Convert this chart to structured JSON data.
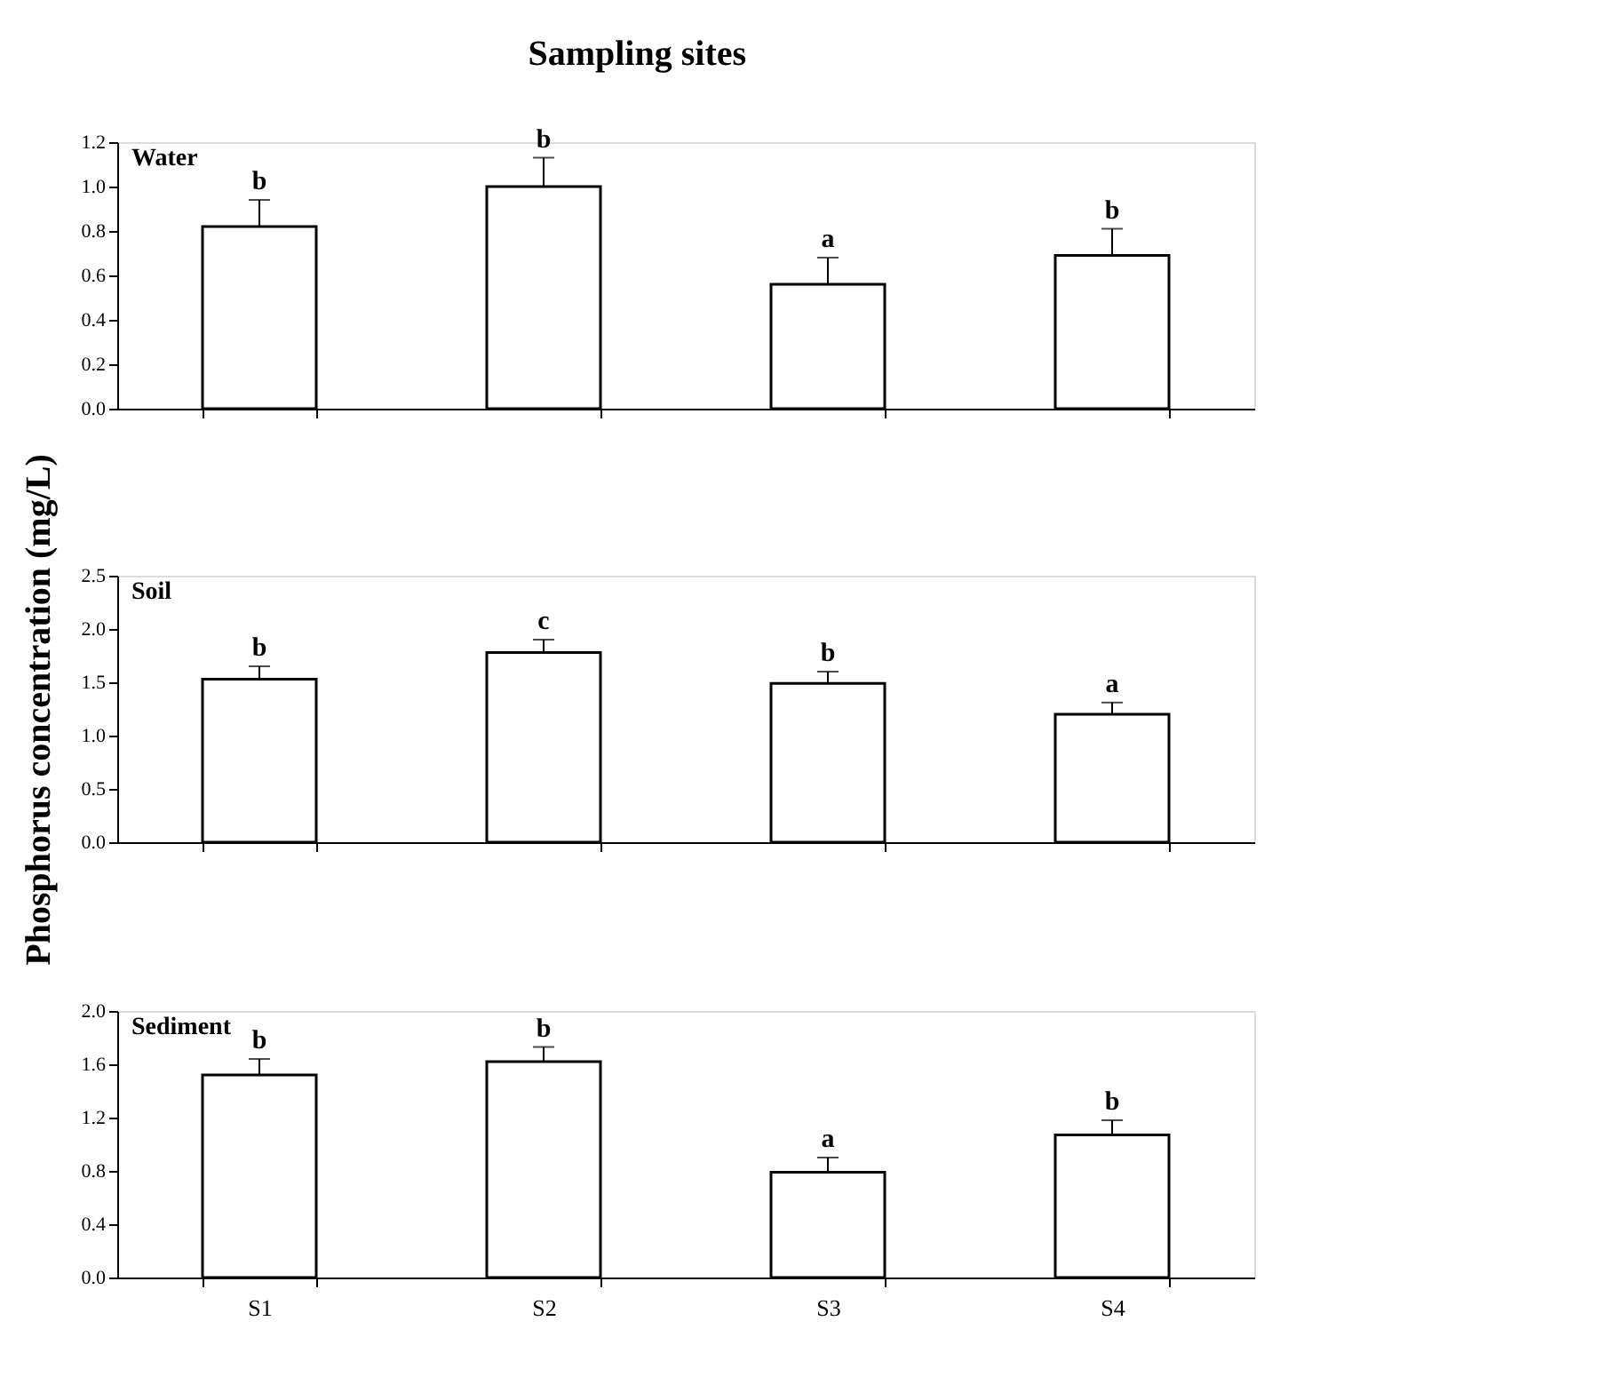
{
  "chart_data": [
    {
      "type": "bar",
      "title": "Sampling sites",
      "categories": [
        "S1",
        "S2",
        "S3",
        "S4"
      ],
      "series": [
        {
          "color": "#ffffff",
          "values": [
            0.82,
            1.0,
            0.56,
            0.69
          ],
          "errors": [
            [
              0.82,
              0.94
            ],
            [
              1.0,
              1.13
            ],
            [
              0.56,
              0.68
            ],
            [
              0.69,
              0.81
            ]
          ]
        }
      ],
      "ylim": [
        0,
        1.2
      ],
      "yticks": [
        {
          "value": 0,
          "label": "0.0"
        },
        {
          "value": 0.2,
          "label": "0.2"
        },
        {
          "value": 0.4,
          "label": "0.4"
        },
        {
          "value": 0.6,
          "label": "0.6"
        },
        {
          "value": 0.8,
          "label": "0.8"
        },
        {
          "value": 1.0,
          "label": "1.0"
        },
        {
          "value": 1.2,
          "label": "1.2"
        }
      ],
      "annotations": [
        "Water",
        {
          "text": "b",
          "x": "S1",
          "y": 0.94
        },
        {
          "text": "b",
          "x": "S2",
          "y": 1.13
        },
        {
          "text": "a",
          "x": "S3",
          "y": 0.68
        },
        {
          "text": "b",
          "x": "S4",
          "y": 0.81
        }
      ],
      "tick_labels": "y",
      "grid": false
    },
    {
      "type": "bar",
      "ylabel": "Phosphorus concentration (mg/L)",
      "categories": [
        "S1",
        "S2",
        "S3",
        "S4"
      ],
      "series": [
        {
          "color": "#ffffff",
          "values": [
            1.53,
            1.78,
            1.49,
            1.2
          ],
          "errors": [
            [
              1.53,
              1.65
            ],
            [
              1.78,
              1.9
            ],
            [
              1.49,
              1.6
            ],
            [
              1.2,
              1.31
            ]
          ]
        }
      ],
      "ylim": [
        0,
        2.5
      ],
      "yticks": [
        {
          "value": 0,
          "label": "0.0"
        },
        {
          "value": 0.5,
          "label": "0.5"
        },
        {
          "value": 1.0,
          "label": "1.0"
        },
        {
          "value": 1.5,
          "label": "1.5"
        },
        {
          "value": 2.0,
          "label": "2.0"
        },
        {
          "value": 2.5,
          "label": "2.5"
        }
      ],
      "annotations": [
        "Soil",
        {
          "text": "b",
          "x": "S1",
          "y": 1.65
        },
        {
          "text": "c",
          "x": "S2",
          "y": 1.9
        },
        {
          "text": "b",
          "x": "S3",
          "y": 1.6
        },
        {
          "text": "a",
          "x": "S4",
          "y": 1.31
        }
      ],
      "tick_labels": "y",
      "grid": false
    },
    {
      "type": "bar",
      "categories": [
        "S1",
        "S2",
        "S3",
        "S4"
      ],
      "series": [
        {
          "color": "#ffffff",
          "values": [
            1.52,
            1.62,
            0.79,
            1.07
          ],
          "errors": [
            [
              1.52,
              1.64
            ],
            [
              1.62,
              1.73
            ],
            [
              0.79,
              0.9
            ],
            [
              1.07,
              1.18
            ]
          ]
        }
      ],
      "ylim": [
        0,
        2.0
      ],
      "yticks": [
        {
          "value": 0,
          "label": "0.0"
        },
        {
          "value": 0.4,
          "label": "0.4"
        },
        {
          "value": 0.8,
          "label": "0.8"
        },
        {
          "value": 1.2,
          "label": "1.2"
        },
        {
          "value": 1.6,
          "label": "1.6"
        },
        {
          "value": 2.0,
          "label": "2.0"
        }
      ],
      "annotations": [
        "Sediment",
        {
          "text": "b",
          "x": "S1",
          "y": 1.64
        },
        {
          "text": "b",
          "x": "S2",
          "y": 1.73
        },
        {
          "text": "a",
          "x": "S3",
          "y": 0.9
        },
        {
          "text": "b",
          "x": "S4",
          "y": 1.18
        }
      ],
      "grid": false
    }
  ]
}
